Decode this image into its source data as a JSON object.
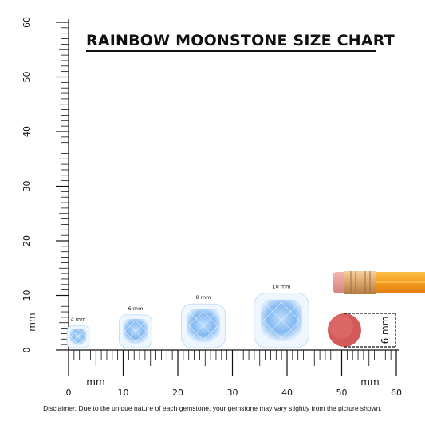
{
  "title": "RAINBOW MOONSTONE SIZE CHART",
  "disclaimer": "Disclaimer: Due to the unique nature of each gemstone, your gemstone may vary slightly from the picture shown.",
  "vertical_ruler": {
    "unit": "mm",
    "labels": [
      "0",
      "10",
      "20",
      "30",
      "40",
      "50",
      "60"
    ]
  },
  "horizontal_ruler": {
    "unit_left": "mm",
    "unit_right": "mm",
    "labels": [
      "0",
      "10",
      "20",
      "30",
      "40",
      "50",
      "60"
    ]
  },
  "stones": [
    {
      "label": "4 mm",
      "size_mm": 4
    },
    {
      "label": "6 mm",
      "size_mm": 6
    },
    {
      "label": "8 mm",
      "size_mm": 8
    },
    {
      "label": "10 mm",
      "size_mm": 10
    }
  ],
  "eraser": {
    "label": "6 mm",
    "size_mm": 6
  },
  "colors": {
    "stone_light": "#eef6ff",
    "stone_blue": "#7fb6ef",
    "eraser": "#d45a5a",
    "pencil_body": "#f49a1e",
    "ferrule": "#d9a56a"
  }
}
